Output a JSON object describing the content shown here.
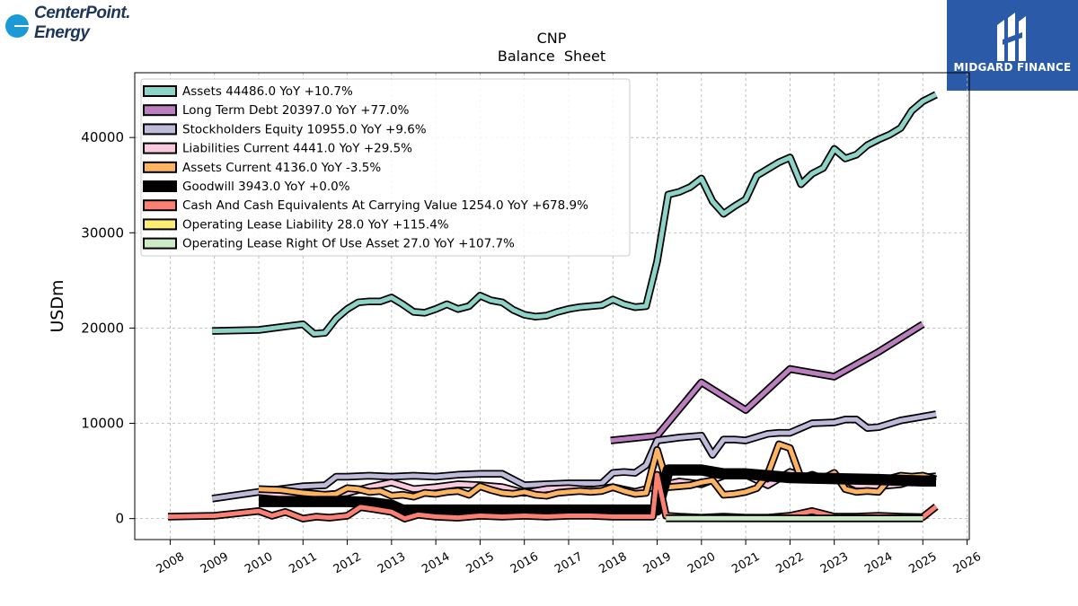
{
  "brand": {
    "left_logo_line1": "CenterPoint.",
    "left_logo_line2": "Energy",
    "right_logo_text": "MIDGARD FINANCE"
  },
  "chart_data": {
    "type": "line",
    "title": "CNP",
    "subtitle": "Balance  Sheet",
    "ylabel": "USDm",
    "xlabel": "",
    "xlim": [
      2007.2,
      2026.05
    ],
    "ylim": [
      -2200,
      46800
    ],
    "x_ticks": [
      2008,
      2009,
      2010,
      2011,
      2012,
      2013,
      2014,
      2015,
      2016,
      2017,
      2018,
      2019,
      2020,
      2021,
      2022,
      2023,
      2024,
      2025,
      2026
    ],
    "y_ticks": [
      0,
      10000,
      20000,
      30000,
      40000
    ],
    "grid": true,
    "legend_position": "top-left",
    "series": [
      {
        "name": "Assets",
        "legend": "Assets  44486.0 YoY +10.7%",
        "color": "#8dd3c7",
        "width": 5,
        "x": [
          2008.95,
          2010.0,
          2010.5,
          2011.0,
          2011.25,
          2011.5,
          2011.75,
          2012.0,
          2012.25,
          2012.5,
          2012.75,
          2013.0,
          2013.25,
          2013.5,
          2013.75,
          2014.0,
          2014.25,
          2014.5,
          2014.75,
          2015.0,
          2015.25,
          2015.5,
          2015.75,
          2016.0,
          2016.25,
          2016.5,
          2016.75,
          2017.0,
          2017.25,
          2017.5,
          2017.75,
          2018.0,
          2018.25,
          2018.5,
          2018.75,
          2019.0,
          2019.25,
          2019.5,
          2019.75,
          2020.0,
          2020.25,
          2020.5,
          2020.75,
          2021.0,
          2021.25,
          2021.5,
          2021.75,
          2022.0,
          2022.25,
          2022.5,
          2022.75,
          2023.0,
          2023.25,
          2023.5,
          2023.75,
          2024.0,
          2024.25,
          2024.5,
          2024.75,
          2025.0,
          2025.3
        ],
        "y": [
          19700,
          19800,
          20100,
          20400,
          19400,
          19500,
          21000,
          22000,
          22700,
          22800,
          22800,
          23200,
          22500,
          21700,
          21600,
          22000,
          22500,
          22000,
          22300,
          23400,
          22900,
          22700,
          21900,
          21400,
          21200,
          21300,
          21700,
          22000,
          22200,
          22300,
          22400,
          23000,
          22500,
          22200,
          22300,
          27000,
          34000,
          34300,
          34800,
          35700,
          33300,
          32000,
          32800,
          33500,
          36000,
          36700,
          37400,
          37900,
          35100,
          36200,
          36800,
          38800,
          37800,
          38200,
          39200,
          39800,
          40300,
          41000,
          42800,
          43800,
          44500
        ]
      },
      {
        "name": "Long Term Debt",
        "legend": "Long Term Debt  20397.0 YoY +77.0%",
        "color": "#bb7fbf",
        "width": 5,
        "x": [
          2017.95,
          2019.0,
          2020.0,
          2021.0,
          2022.0,
          2023.0,
          2024.0,
          2025.0
        ],
        "y": [
          8200,
          8700,
          14300,
          11400,
          15700,
          14900,
          17500,
          20400
        ]
      },
      {
        "name": "Stockholders Equity",
        "legend": "Stockholders Equity  10955.0 YoY +9.6%",
        "color": "#bebada",
        "width": 5,
        "x": [
          2008.95,
          2010.0,
          2011.0,
          2011.5,
          2011.75,
          2012.0,
          2012.5,
          2013.0,
          2013.5,
          2014.0,
          2014.5,
          2015.0,
          2015.5,
          2016.0,
          2016.5,
          2017.0,
          2017.5,
          2017.75,
          2018.0,
          2018.25,
          2018.5,
          2018.75,
          2019.0,
          2019.5,
          2020.0,
          2020.25,
          2020.5,
          2020.75,
          2021.0,
          2021.5,
          2021.75,
          2022.0,
          2022.5,
          2023.0,
          2023.25,
          2023.5,
          2023.75,
          2024.0,
          2024.5,
          2025.0,
          2025.3
        ],
        "y": [
          2100,
          2800,
          3400,
          3500,
          4400,
          4400,
          4500,
          4400,
          4500,
          4400,
          4600,
          4700,
          4700,
          3500,
          3600,
          3700,
          3700,
          3700,
          4800,
          4900,
          4800,
          5600,
          8200,
          8500,
          8700,
          6700,
          8300,
          8300,
          8200,
          8900,
          9000,
          9000,
          10000,
          10100,
          10400,
          10400,
          9500,
          9600,
          10300,
          10700,
          10950
        ]
      },
      {
        "name": "Liabilities Current",
        "legend": "Liabilities Current  4441.0 YoY +29.5%",
        "color": "#f9c9dd",
        "width": 5,
        "x": [
          2010.0,
          2010.5,
          2011.0,
          2011.5,
          2012.0,
          2012.5,
          2013.0,
          2013.5,
          2014.0,
          2014.5,
          2015.0,
          2015.5,
          2016.0,
          2016.5,
          2017.0,
          2017.5,
          2018.0,
          2018.5,
          2019.0,
          2019.5,
          2020.0,
          2020.5,
          2021.0,
          2021.5,
          2022.0,
          2022.5,
          2023.0,
          2023.5,
          2024.0,
          2024.5,
          2025.0,
          2025.3
        ],
        "y": [
          2800,
          2600,
          2300,
          2500,
          2700,
          3300,
          3800,
          3100,
          3300,
          3600,
          3500,
          3300,
          2700,
          3100,
          3200,
          3000,
          3300,
          2800,
          3400,
          3900,
          3600,
          4500,
          4600,
          3500,
          4900,
          4100,
          4600,
          3500,
          3400,
          3600,
          4300,
          4440
        ]
      },
      {
        "name": "Assets Current",
        "legend": "Assets Current  4136.0 YoY -3.5%",
        "color": "#fdb462",
        "width": 5,
        "x": [
          2010.0,
          2010.5,
          2011.0,
          2011.5,
          2011.75,
          2012.0,
          2012.25,
          2012.5,
          2012.75,
          2013.0,
          2013.25,
          2013.5,
          2013.75,
          2014.0,
          2014.25,
          2014.5,
          2014.75,
          2015.0,
          2015.25,
          2015.5,
          2015.75,
          2016.0,
          2016.25,
          2016.5,
          2016.75,
          2017.0,
          2017.25,
          2017.5,
          2017.75,
          2018.0,
          2018.25,
          2018.5,
          2018.75,
          2019.0,
          2019.25,
          2019.5,
          2019.75,
          2020.0,
          2020.25,
          2020.5,
          2020.75,
          2021.0,
          2021.25,
          2021.5,
          2021.75,
          2022.0,
          2022.25,
          2022.5,
          2022.75,
          2023.0,
          2023.25,
          2023.5,
          2023.75,
          2024.0,
          2024.25,
          2024.5,
          2024.75,
          2025.0,
          2025.3
        ],
        "y": [
          3100,
          3000,
          2700,
          2500,
          2600,
          3200,
          3100,
          2800,
          2900,
          2400,
          2500,
          2300,
          2700,
          2600,
          2800,
          2900,
          2500,
          3400,
          3000,
          2700,
          2600,
          2800,
          2500,
          2400,
          2700,
          2800,
          2900,
          2800,
          2900,
          3300,
          2900,
          2600,
          2700,
          7200,
          3300,
          3400,
          3500,
          3800,
          4000,
          2500,
          2600,
          2800,
          3200,
          4700,
          7800,
          7400,
          4200,
          4600,
          4200,
          4800,
          3100,
          2800,
          2900,
          2800,
          4200,
          4500,
          4400,
          4500,
          4136
        ]
      },
      {
        "name": "Goodwill",
        "legend": "Goodwill  3943.0 YoY +0.0%",
        "color": "#000000",
        "width": 9,
        "x": [
          2010.0,
          2011.0,
          2012.0,
          2012.5,
          2013.0,
          2013.25,
          2013.75,
          2014.0,
          2015.0,
          2016.0,
          2017.0,
          2018.0,
          2018.75,
          2019.0,
          2019.25,
          2020.0,
          2020.5,
          2021.0,
          2021.5,
          2022.0,
          2023.0,
          2024.0,
          2025.0,
          2025.3
        ],
        "y": [
          1800,
          1800,
          1800,
          1700,
          1400,
          900,
          900,
          900,
          900,
          900,
          900,
          900,
          900,
          900,
          5100,
          5100,
          4700,
          4700,
          4500,
          4300,
          4200,
          4100,
          3943,
          3943
        ]
      },
      {
        "name": "Cash And Cash Equivalents At Carrying Value",
        "legend": "Cash And Cash Equivalents At Carrying Value  1254.0 YoY +678.9%",
        "color": "#fb8072",
        "width": 5,
        "x": [
          2007.95,
          2009.0,
          2010.0,
          2010.3,
          2010.6,
          2011.0,
          2011.3,
          2011.6,
          2012.0,
          2012.3,
          2012.6,
          2013.0,
          2013.3,
          2013.6,
          2014.0,
          2014.5,
          2015.0,
          2015.5,
          2016.0,
          2016.5,
          2017.0,
          2017.5,
          2018.0,
          2018.5,
          2018.9,
          2019.0,
          2019.2,
          2019.5,
          2020.0,
          2020.5,
          2021.0,
          2021.5,
          2022.0,
          2022.5,
          2023.0,
          2023.5,
          2024.0,
          2024.5,
          2025.0,
          2025.3
        ],
        "y": [
          200,
          300,
          800,
          300,
          700,
          0,
          200,
          100,
          300,
          1200,
          1000,
          700,
          0,
          400,
          200,
          100,
          300,
          200,
          300,
          200,
          300,
          300,
          200,
          200,
          200,
          4600,
          300,
          200,
          100,
          200,
          100,
          100,
          300,
          800,
          200,
          200,
          300,
          200,
          160,
          1254
        ]
      },
      {
        "name": "Operating Lease Liability",
        "legend": "Operating Lease Liability  28.0 YoY +115.4%",
        "color": "#ffed6f",
        "width": 5,
        "x": [
          2019.2,
          2025.0
        ],
        "y": [
          28,
          28
        ]
      },
      {
        "name": "Operating Lease Right Of Use Asset",
        "legend": "Operating Lease Right Of Use Asset  27.0 YoY +107.7%",
        "color": "#ccebc5",
        "width": 5,
        "x": [
          2019.2,
          2025.0
        ],
        "y": [
          30,
          27
        ]
      }
    ]
  }
}
